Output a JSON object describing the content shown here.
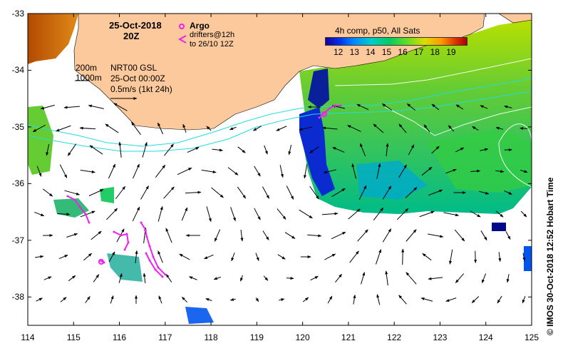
{
  "chart_data": {
    "type": "map",
    "xlim": [
      114,
      125
    ],
    "ylim": [
      -38.5,
      -33
    ],
    "x_ticks": [
      "114",
      "115",
      "116",
      "117",
      "118",
      "119",
      "120",
      "121",
      "122",
      "123",
      "124",
      "125"
    ],
    "y_ticks": [
      "-33",
      "-34",
      "-35",
      "-36",
      "-37",
      "-38"
    ],
    "date_line1": "25-Oct-2018",
    "date_line2": "20Z",
    "argo_label": "Argo",
    "drifters_line1": "drifters@12h",
    "drifters_line2": "to 26/10 12Z",
    "isobath_200": "200m",
    "isobath_1000": "1000m",
    "nrt_line1": "NRT00 GSL",
    "nrt_line2": "25-Oct 00:00Z",
    "scale_label": "0.5m/s (1kt 24h)",
    "colorbar_title": "4h comp, p50, All Sats",
    "colorbar_ticks": [
      "12",
      "13",
      "14",
      "15",
      "16",
      "17",
      "18",
      "19"
    ],
    "credit": "© IMOS 30-Oct-2018 12:52 Hobart Time",
    "colors": {
      "land": "#fcc99c",
      "argo": "#ee22ee",
      "isobath": "#22dddd"
    }
  }
}
